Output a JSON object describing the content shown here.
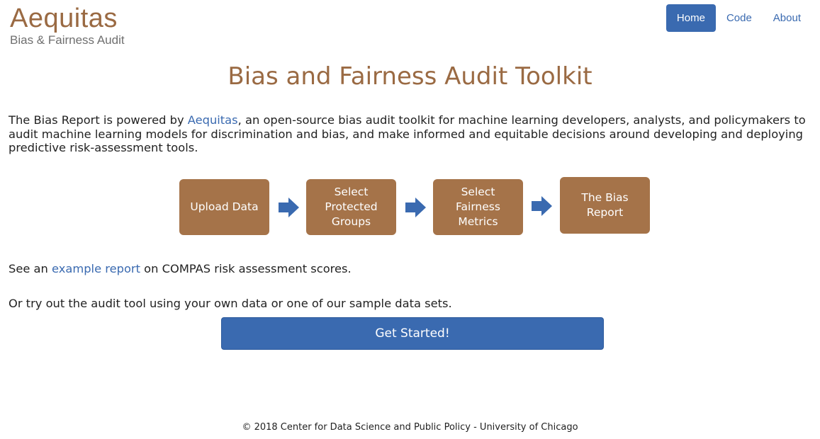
{
  "logo": {
    "title": "Aequitas",
    "subtitle": "Bias & Fairness Audit"
  },
  "nav": [
    {
      "label": "Home",
      "active": true
    },
    {
      "label": "Code",
      "active": false
    },
    {
      "label": "About",
      "active": false
    }
  ],
  "main": {
    "title": "Bias and Fairness Audit Toolkit",
    "intro_before": "The Bias Report is powered by ",
    "intro_link": "Aequitas",
    "intro_after": ", an open-source bias audit toolkit for machine learning developers, analysts, and policymakers to audit machine learning models for discrimination and bias, and make informed and equitable decisions around developing and deploying predictive risk-assessment tools.",
    "steps": [
      "Upload Data",
      "Select Protected Groups",
      "Select Fairness Metrics",
      "The Bias Report"
    ],
    "example_before": "See an ",
    "example_link": "example report",
    "example_after": " on COMPAS risk assessment scores.",
    "try_text": "Or try out the audit tool using your own data or one of our sample data sets.",
    "cta_label": "Get Started!"
  },
  "footer": {
    "text": "© 2018 Center for Data Science and Public Policy - University of Chicago"
  },
  "colors": {
    "brand_brown": "#9a6a43",
    "step_brown": "#a57349",
    "accent_blue": "#3a6ab0"
  }
}
